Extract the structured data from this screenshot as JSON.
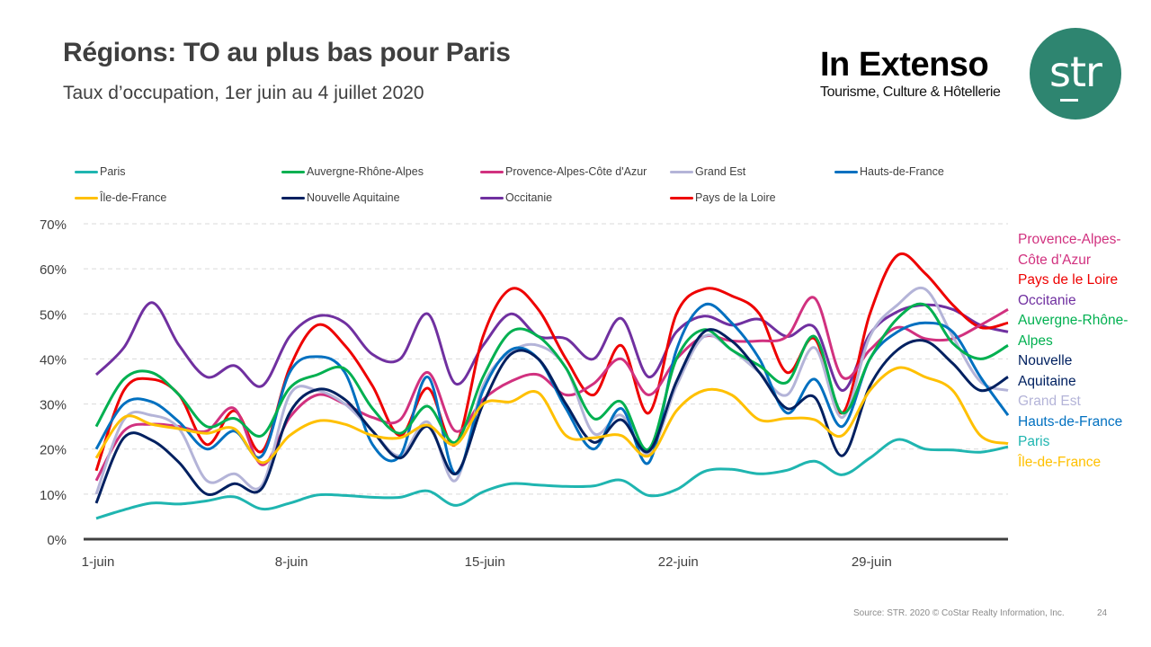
{
  "header": {
    "title": "Régions: TO au plus bas pour Paris",
    "subtitle": "Taux d’occupation, 1er juin au 4 juillet 2020"
  },
  "brand": {
    "name": "In Extenso",
    "tagline": "Tourisme, Culture & Hôtellerie",
    "logo_text": "str",
    "logo_color": "#2e8570"
  },
  "footer": {
    "source": "Source: STR. 2020 © CoStar Realty Information, Inc.",
    "page_number": "24"
  },
  "side_labels": [
    {
      "text": "Provence-Alpes-",
      "color": "#d1317f"
    },
    {
      "text": "Côte d’Azur",
      "color": "#d1317f"
    },
    {
      "text": "Pays de le Loire",
      "color": "#ee0000"
    },
    {
      "text": "Occitanie",
      "color": "#7030a0"
    },
    {
      "text": "Auvergne-Rhône-",
      "color": "#00b050"
    },
    {
      "text": "Alpes",
      "color": "#00b050"
    },
    {
      "text": "Nouvelle",
      "color": "#002060"
    },
    {
      "text": "Aquitaine",
      "color": "#002060"
    },
    {
      "text": "Grand Est",
      "color": "#b4b4d8"
    },
    {
      "text": "Hauts-de-France",
      "color": "#0070c0"
    },
    {
      "text": "Paris",
      "color": "#1fb5b0"
    },
    {
      "text": "Île-de-France",
      "color": "#ffc000"
    }
  ],
  "chart_data": {
    "type": "line",
    "title": "Taux d’occupation, 1er juin au 4 juillet 2020",
    "xlabel": "",
    "ylabel": "",
    "ylim": [
      0,
      0.7
    ],
    "yticks": [
      "0%",
      "10%",
      "20%",
      "30%",
      "40%",
      "50%",
      "60%",
      "70%"
    ],
    "ytick_values": [
      0,
      0.1,
      0.2,
      0.3,
      0.4,
      0.5,
      0.6,
      0.7
    ],
    "xtick_labels": [
      {
        "label": "1-juin",
        "index": 0
      },
      {
        "label": "8-juin",
        "index": 7
      },
      {
        "label": "15-juin",
        "index": 14
      },
      {
        "label": "22-juin",
        "index": 21
      },
      {
        "label": "29-juin",
        "index": 28
      }
    ],
    "x": [
      "1-juin",
      "2-juin",
      "3-juin",
      "4-juin",
      "5-juin",
      "6-juin",
      "7-juin",
      "8-juin",
      "9-juin",
      "10-juin",
      "11-juin",
      "12-juin",
      "13-juin",
      "14-juin",
      "15-juin",
      "16-juin",
      "17-juin",
      "18-juin",
      "19-juin",
      "20-juin",
      "21-juin",
      "22-juin",
      "23-juin",
      "24-juin",
      "25-juin",
      "26-juin",
      "27-juin",
      "28-juin",
      "29-juin",
      "30-juin",
      "1-juil",
      "2-juil",
      "3-juil",
      "4-juil"
    ],
    "grid": true,
    "smooth": true,
    "legend_position": "top",
    "series": [
      {
        "name": "Paris",
        "color": "#1fb5b0",
        "values": [
          0.046,
          0.065,
          0.08,
          0.078,
          0.085,
          0.094,
          0.067,
          0.08,
          0.098,
          0.097,
          0.093,
          0.093,
          0.107,
          0.075,
          0.105,
          0.123,
          0.12,
          0.117,
          0.118,
          0.131,
          0.097,
          0.11,
          0.15,
          0.155,
          0.145,
          0.153,
          0.173,
          0.143,
          0.18,
          0.221,
          0.2,
          0.198,
          0.193,
          0.205
        ]
      },
      {
        "name": "Auvergne-Rhône-Alpes",
        "color": "#00b050",
        "values": [
          0.25,
          0.355,
          0.37,
          0.32,
          0.25,
          0.268,
          0.23,
          0.335,
          0.365,
          0.378,
          0.29,
          0.235,
          0.295,
          0.215,
          0.36,
          0.46,
          0.45,
          0.38,
          0.268,
          0.305,
          0.2,
          0.4,
          0.465,
          0.42,
          0.385,
          0.348,
          0.45,
          0.28,
          0.4,
          0.49,
          0.52,
          0.435,
          0.4,
          0.43
        ]
      },
      {
        "name": "Provence-Alpes-Côte d'Azur",
        "color": "#d1317f",
        "values": [
          0.13,
          0.24,
          0.255,
          0.25,
          0.24,
          0.29,
          0.165,
          0.27,
          0.32,
          0.3,
          0.27,
          0.265,
          0.37,
          0.24,
          0.31,
          0.35,
          0.365,
          0.32,
          0.345,
          0.4,
          0.32,
          0.4,
          0.45,
          0.44,
          0.44,
          0.45,
          0.535,
          0.36,
          0.42,
          0.47,
          0.445,
          0.445,
          0.475,
          0.51
        ]
      },
      {
        "name": "Grand Est",
        "color": "#b4b4d8",
        "values": [
          0.1,
          0.265,
          0.275,
          0.245,
          0.13,
          0.145,
          0.12,
          0.32,
          0.33,
          0.3,
          0.24,
          0.185,
          0.26,
          0.13,
          0.34,
          0.415,
          0.43,
          0.38,
          0.235,
          0.275,
          0.19,
          0.34,
          0.45,
          0.42,
          0.37,
          0.32,
          0.425,
          0.27,
          0.45,
          0.52,
          0.555,
          0.45,
          0.35,
          0.33
        ]
      },
      {
        "name": "Hauts-de-France",
        "color": "#0070c0",
        "values": [
          0.2,
          0.3,
          0.305,
          0.26,
          0.2,
          0.24,
          0.185,
          0.37,
          0.405,
          0.37,
          0.21,
          0.185,
          0.36,
          0.145,
          0.33,
          0.42,
          0.4,
          0.29,
          0.2,
          0.29,
          0.17,
          0.42,
          0.52,
          0.48,
          0.4,
          0.28,
          0.355,
          0.25,
          0.4,
          0.46,
          0.48,
          0.46,
          0.36,
          0.275
        ]
      },
      {
        "name": "Île-de-France",
        "color": "#ffc000",
        "values": [
          0.18,
          0.27,
          0.255,
          0.245,
          0.235,
          0.245,
          0.17,
          0.23,
          0.262,
          0.255,
          0.23,
          0.225,
          0.253,
          0.21,
          0.3,
          0.305,
          0.325,
          0.23,
          0.225,
          0.23,
          0.185,
          0.285,
          0.33,
          0.32,
          0.265,
          0.268,
          0.265,
          0.23,
          0.33,
          0.38,
          0.36,
          0.33,
          0.23,
          0.212
        ]
      },
      {
        "name": "Nouvelle Aquitaine",
        "color": "#002060",
        "values": [
          0.08,
          0.225,
          0.22,
          0.17,
          0.1,
          0.123,
          0.113,
          0.28,
          0.332,
          0.31,
          0.24,
          0.18,
          0.25,
          0.145,
          0.3,
          0.41,
          0.4,
          0.3,
          0.215,
          0.265,
          0.195,
          0.35,
          0.46,
          0.44,
          0.37,
          0.29,
          0.315,
          0.185,
          0.34,
          0.42,
          0.44,
          0.39,
          0.33,
          0.36
        ]
      },
      {
        "name": "Occitanie",
        "color": "#7030a0",
        "values": [
          0.365,
          0.425,
          0.525,
          0.43,
          0.36,
          0.385,
          0.34,
          0.45,
          0.495,
          0.48,
          0.41,
          0.4,
          0.5,
          0.345,
          0.43,
          0.5,
          0.45,
          0.445,
          0.4,
          0.49,
          0.36,
          0.46,
          0.495,
          0.475,
          0.488,
          0.45,
          0.47,
          0.33,
          0.455,
          0.505,
          0.52,
          0.51,
          0.475,
          0.46
        ]
      },
      {
        "name": "Pays de la Loire",
        "color": "#ee0000",
        "values": [
          0.152,
          0.33,
          0.355,
          0.32,
          0.21,
          0.285,
          0.195,
          0.38,
          0.475,
          0.43,
          0.34,
          0.23,
          0.335,
          0.21,
          0.45,
          0.555,
          0.51,
          0.4,
          0.32,
          0.43,
          0.28,
          0.5,
          0.555,
          0.54,
          0.5,
          0.37,
          0.445,
          0.28,
          0.5,
          0.63,
          0.59,
          0.52,
          0.47,
          0.48
        ]
      }
    ]
  }
}
